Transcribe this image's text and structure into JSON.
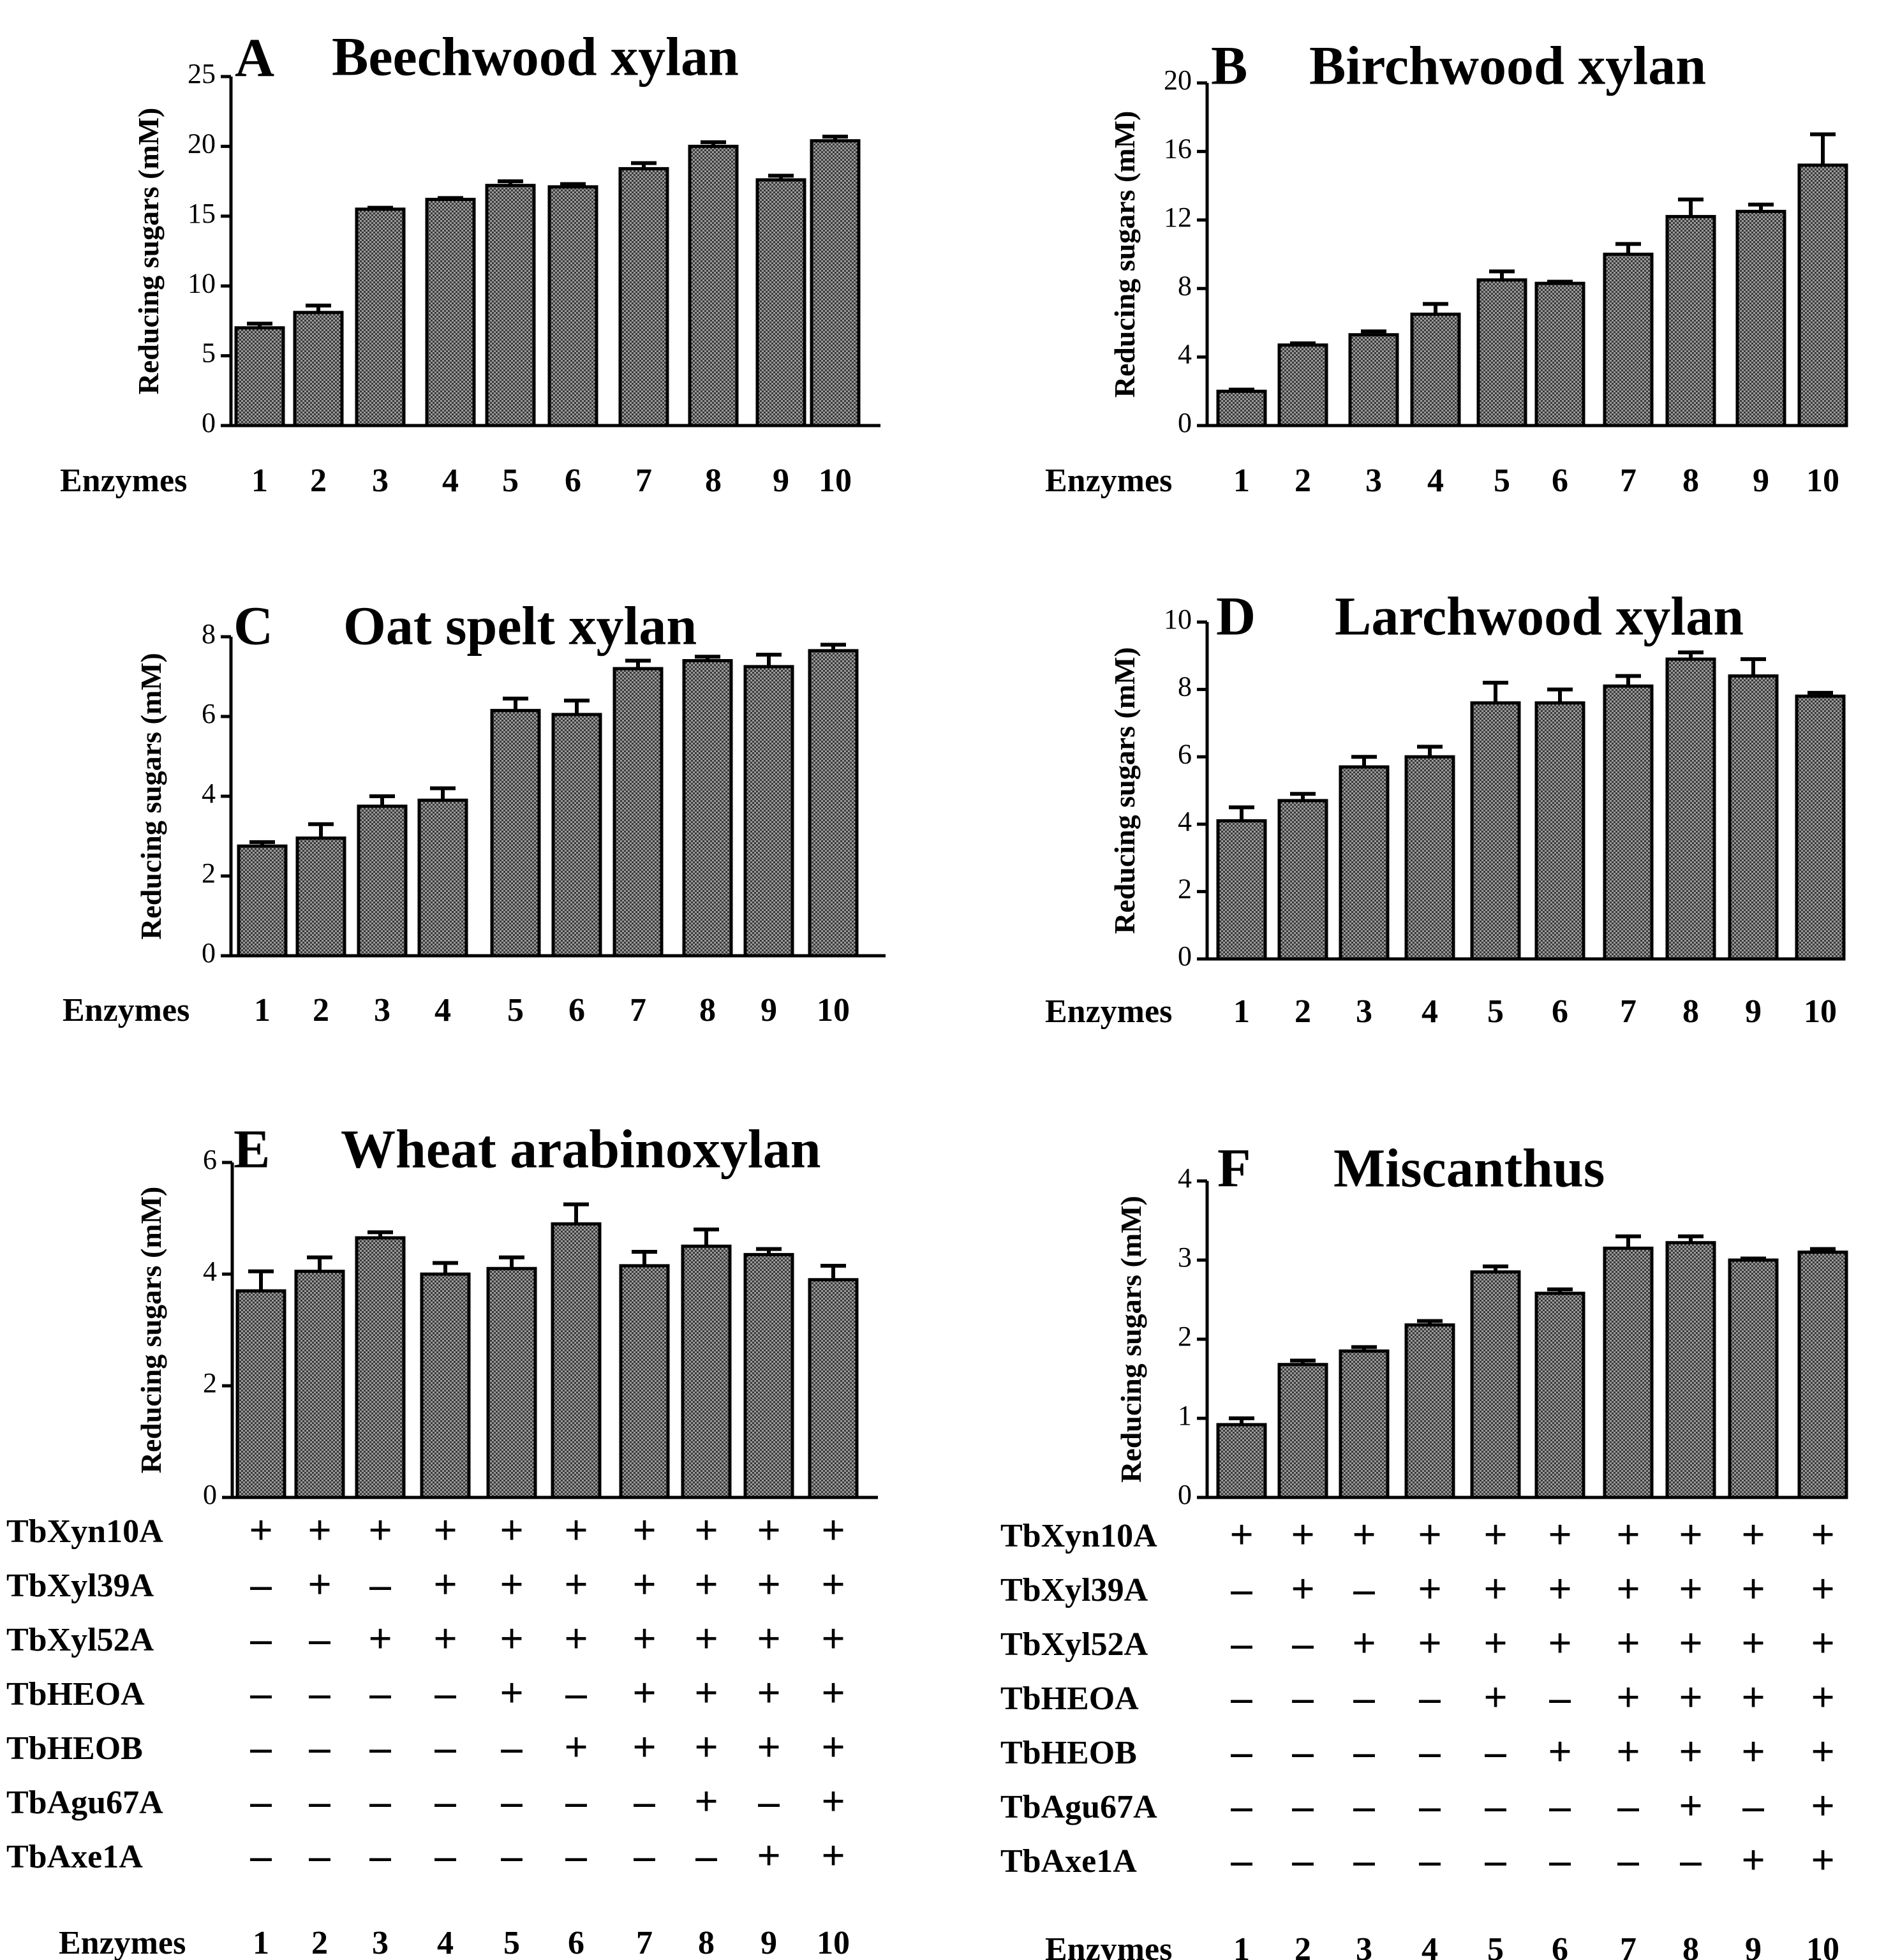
{
  "common": {
    "ylabel": "Reducing sugars (mM)",
    "xlabel": "Enzymes",
    "categories": [
      "1",
      "2",
      "3",
      "4",
      "5",
      "6",
      "7",
      "8",
      "9",
      "10"
    ],
    "bar_fill": "#8a8a8a"
  },
  "chart_data": [
    {
      "type": "bar",
      "panel": "A",
      "title": "Beechwood xylan",
      "xlabel": "Enzymes",
      "ylabel": "Reducing sugars (mM)",
      "ylim": [
        0,
        25
      ],
      "yticks": [
        0,
        5,
        10,
        15,
        20,
        25
      ],
      "categories": [
        "1",
        "2",
        "3",
        "4",
        "5",
        "6",
        "7",
        "8",
        "9",
        "10"
      ],
      "values": [
        7.0,
        8.1,
        15.5,
        16.2,
        17.2,
        17.1,
        18.4,
        20.0,
        17.6,
        20.4
      ],
      "errors": [
        0.3,
        0.5,
        0.1,
        0.1,
        0.3,
        0.2,
        0.4,
        0.3,
        0.3,
        0.3
      ]
    },
    {
      "type": "bar",
      "panel": "B",
      "title": "Birchwood xylan",
      "xlabel": "Enzymes",
      "ylabel": "Reducing sugars (mM)",
      "ylim": [
        0,
        20
      ],
      "yticks": [
        0,
        4,
        8,
        12,
        16,
        20
      ],
      "categories": [
        "1",
        "2",
        "3",
        "4",
        "5",
        "6",
        "7",
        "8",
        "9",
        "10"
      ],
      "values": [
        2.0,
        4.7,
        5.3,
        6.5,
        8.5,
        8.3,
        10.0,
        12.2,
        12.5,
        15.2
      ],
      "errors": [
        0.1,
        0.1,
        0.2,
        0.6,
        0.5,
        0.1,
        0.6,
        1.0,
        0.4,
        1.8
      ]
    },
    {
      "type": "bar",
      "panel": "C",
      "title": "Oat spelt xylan",
      "xlabel": "Enzymes",
      "ylabel": "Reducing sugars (mM)",
      "ylim": [
        0,
        8
      ],
      "yticks": [
        0,
        2,
        4,
        6,
        8
      ],
      "categories": [
        "1",
        "2",
        "3",
        "4",
        "5",
        "6",
        "7",
        "8",
        "9",
        "10"
      ],
      "values": [
        2.75,
        2.95,
        3.75,
        3.9,
        6.15,
        6.05,
        7.2,
        7.4,
        7.25,
        7.65
      ],
      "errors": [
        0.1,
        0.35,
        0.25,
        0.3,
        0.3,
        0.35,
        0.2,
        0.1,
        0.3,
        0.15
      ]
    },
    {
      "type": "bar",
      "panel": "D",
      "title": "Larchwood xylan",
      "xlabel": "Enzymes",
      "ylabel": "Reducing sugars (mM)",
      "ylim": [
        0,
        10
      ],
      "yticks": [
        0,
        2,
        4,
        6,
        8,
        10
      ],
      "categories": [
        "1",
        "2",
        "3",
        "4",
        "5",
        "6",
        "7",
        "8",
        "9",
        "10"
      ],
      "values": [
        4.1,
        4.7,
        5.7,
        6.0,
        7.6,
        7.6,
        8.1,
        8.9,
        8.4,
        7.8
      ],
      "errors": [
        0.4,
        0.2,
        0.3,
        0.3,
        0.6,
        0.4,
        0.3,
        0.2,
        0.5,
        0.1
      ]
    },
    {
      "type": "bar",
      "panel": "E",
      "title": "Wheat arabinoxylan",
      "xlabel": "Enzymes",
      "ylabel": "Reducing sugars (mM)",
      "ylim": [
        0,
        6
      ],
      "yticks": [
        0,
        2,
        4,
        6
      ],
      "categories": [
        "1",
        "2",
        "3",
        "4",
        "5",
        "6",
        "7",
        "8",
        "9",
        "10"
      ],
      "values": [
        3.7,
        4.05,
        4.65,
        4.0,
        4.1,
        4.9,
        4.15,
        4.5,
        4.35,
        3.9
      ],
      "errors": [
        0.35,
        0.25,
        0.1,
        0.2,
        0.2,
        0.35,
        0.25,
        0.3,
        0.1,
        0.25
      ]
    },
    {
      "type": "bar",
      "panel": "F",
      "title": "Miscanthus",
      "xlabel": "Enzymes",
      "ylabel": "Reducing sugars (mM)",
      "ylim": [
        0,
        4
      ],
      "yticks": [
        0,
        1,
        2,
        3,
        4
      ],
      "categories": [
        "1",
        "2",
        "3",
        "4",
        "5",
        "6",
        "7",
        "8",
        "9",
        "10"
      ],
      "values": [
        0.92,
        1.68,
        1.85,
        2.18,
        2.85,
        2.58,
        3.15,
        3.22,
        3.0,
        3.1
      ],
      "errors": [
        0.08,
        0.05,
        0.05,
        0.05,
        0.07,
        0.05,
        0.15,
        0.08,
        0.02,
        0.04
      ]
    }
  ],
  "enzyme_table": {
    "rows": [
      {
        "label": "TbXyn10A",
        "signs": [
          "+",
          "+",
          "+",
          "+",
          "+",
          "+",
          "+",
          "+",
          "+",
          "+"
        ]
      },
      {
        "label": "TbXyl39A",
        "signs": [
          "–",
          "+",
          "–",
          "+",
          "+",
          "+",
          "+",
          "+",
          "+",
          "+"
        ]
      },
      {
        "label": "TbXyl52A",
        "signs": [
          "–",
          "–",
          "+",
          "+",
          "+",
          "+",
          "+",
          "+",
          "+",
          "+"
        ]
      },
      {
        "label": "TbHEOA",
        "signs": [
          "–",
          "–",
          "–",
          "–",
          "+",
          "–",
          "+",
          "+",
          "+",
          "+"
        ]
      },
      {
        "label": "TbHEOB",
        "signs": [
          "–",
          "–",
          "–",
          "–",
          "–",
          "+",
          "+",
          "+",
          "+",
          "+"
        ]
      },
      {
        "label": "TbAgu67A",
        "signs": [
          "–",
          "–",
          "–",
          "–",
          "–",
          "–",
          "–",
          "+",
          "–",
          "+"
        ]
      },
      {
        "label": "TbAxe1A",
        "signs": [
          "–",
          "–",
          "–",
          "–",
          "–",
          "–",
          "–",
          "–",
          "+",
          "+"
        ]
      }
    ]
  }
}
